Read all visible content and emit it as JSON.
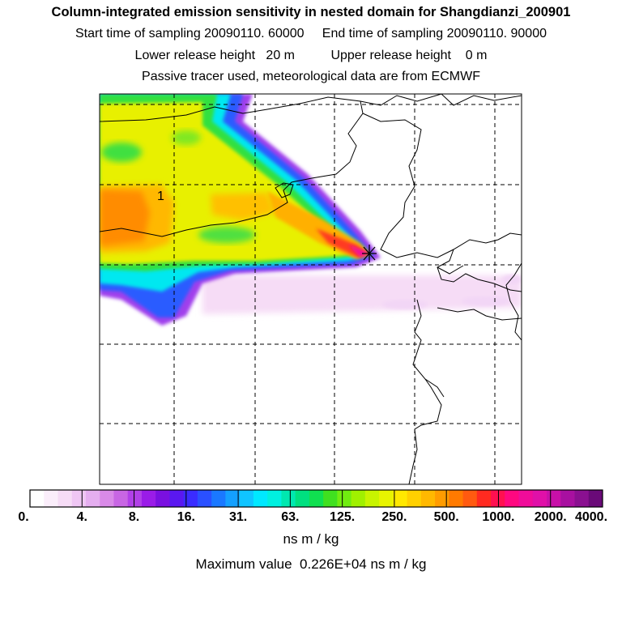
{
  "header": {
    "title": "Column-integrated emission sensitivity in nested domain for Shangdianzi_200901",
    "line2": "Start time of sampling 20090110. 60000     End time of sampling 20090110. 90000",
    "line3": "Lower release height   20 m          Upper release height    0 m",
    "line4": "Passive tracer used, meteorological data are from ECMWF"
  },
  "map": {
    "contour_label": "1",
    "receptor_marker": "star-marker"
  },
  "colorbar": {
    "colors": [
      "#ffffff",
      "#fbeefb",
      "#f6dcf6",
      "#efc6f4",
      "#e5aef0",
      "#d98ae8",
      "#c866e4",
      "#b140e8",
      "#9a1ce8",
      "#7a10e0",
      "#5a18f0",
      "#3a2cff",
      "#2a50ff",
      "#1a78ff",
      "#14a0ff",
      "#10c4ff",
      "#00e8ff",
      "#00f0e0",
      "#00e8b0",
      "#00e080",
      "#10e050",
      "#40e020",
      "#70ec10",
      "#a0f000",
      "#c8f400",
      "#e8f400",
      "#ffe800",
      "#ffd000",
      "#ffb800",
      "#ff9c00",
      "#ff7a00",
      "#ff5a10",
      "#ff2a20",
      "#ff1050",
      "#ff0880",
      "#f00c9a",
      "#e010a8",
      "#c810a8",
      "#a810a0",
      "#8a1090",
      "#6a0a78"
    ],
    "tick_labels": [
      "0.",
      "4.",
      "8.",
      "16.",
      "31.",
      "63.",
      "125.",
      "250.",
      "500.",
      "1000.",
      "2000.",
      "4000."
    ],
    "unit": "ns m / kg"
  },
  "footer": {
    "max_value": "Maximum value  0.226E+04 ns m / kg"
  }
}
